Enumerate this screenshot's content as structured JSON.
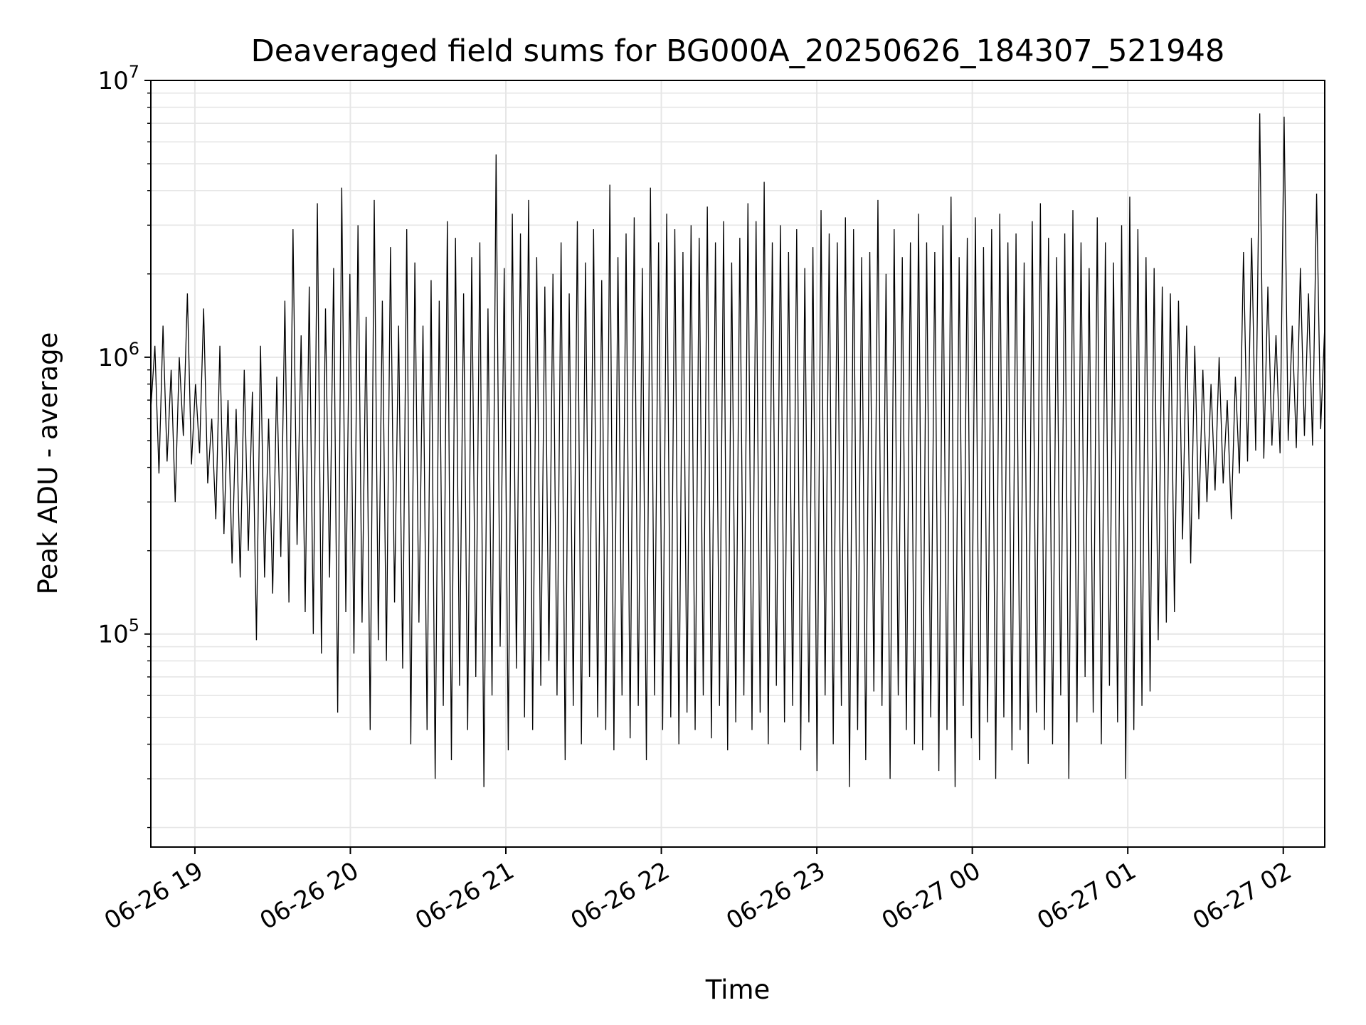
{
  "chart_data": {
    "type": "line",
    "title": "Deaveraged field sums for BG000A_20250626_184307_521948",
    "xlabel": "Time",
    "ylabel": "Peak ADU - average",
    "y_scale": "log",
    "ylim": [
      17000,
      10000000
    ],
    "xlim": [
      "2025-06-26 18:43",
      "2025-06-27 02:16"
    ],
    "grid": true,
    "line_color": "#000000",
    "x_ticks": [
      {
        "time": "2025-06-26 19:00",
        "label": "06-26 19"
      },
      {
        "time": "2025-06-26 20:00",
        "label": "06-26 20"
      },
      {
        "time": "2025-06-26 21:00",
        "label": "06-26 21"
      },
      {
        "time": "2025-06-26 22:00",
        "label": "06-26 22"
      },
      {
        "time": "2025-06-26 23:00",
        "label": "06-26 23"
      },
      {
        "time": "2025-06-27 00:00",
        "label": "06-27 00"
      },
      {
        "time": "2025-06-27 01:00",
        "label": "06-27 01"
      },
      {
        "time": "2025-06-27 02:00",
        "label": "06-27 02"
      }
    ],
    "y_ticks": [
      {
        "value": 100000,
        "base": "10",
        "exp": "5"
      },
      {
        "value": 1000000,
        "base": "10",
        "exp": "6"
      },
      {
        "value": 10000000,
        "base": "10",
        "exp": "7"
      }
    ],
    "series": [
      {
        "x_start": "2025-06-26 18:43",
        "x_end": "2025-06-27 02:16",
        "values": [
          650000,
          1100000,
          380000,
          1300000,
          420000,
          900000,
          300000,
          1000000,
          520000,
          1700000,
          410000,
          800000,
          450000,
          1500000,
          350000,
          600000,
          260000,
          1100000,
          230000,
          700000,
          180000,
          650000,
          160000,
          900000,
          200000,
          750000,
          95000,
          1100000,
          160000,
          600000,
          140000,
          850000,
          190000,
          1600000,
          130000,
          2900000,
          210000,
          1200000,
          120000,
          1800000,
          100000,
          3600000,
          85000,
          1500000,
          160000,
          2100000,
          52000,
          4100000,
          120000,
          2000000,
          85000,
          3000000,
          110000,
          1400000,
          45000,
          3700000,
          95000,
          1600000,
          80000,
          2500000,
          130000,
          1300000,
          75000,
          2900000,
          40000,
          2200000,
          110000,
          1300000,
          45000,
          1900000,
          30000,
          1600000,
          55000,
          3100000,
          35000,
          2700000,
          65000,
          1700000,
          45000,
          2300000,
          70000,
          2600000,
          28000,
          1500000,
          60000,
          5400000,
          90000,
          2100000,
          38000,
          3300000,
          75000,
          2800000,
          50000,
          3700000,
          45000,
          2300000,
          65000,
          1800000,
          80000,
          2000000,
          60000,
          2600000,
          35000,
          1700000,
          55000,
          3100000,
          40000,
          2200000,
          70000,
          2900000,
          50000,
          1900000,
          45000,
          4200000,
          38000,
          2300000,
          60000,
          2800000,
          42000,
          3200000,
          55000,
          2100000,
          35000,
          4100000,
          60000,
          2600000,
          45000,
          3300000,
          50000,
          2900000,
          40000,
          2400000,
          52000,
          3000000,
          45000,
          2700000,
          60000,
          3500000,
          42000,
          2600000,
          55000,
          3100000,
          38000,
          2200000,
          48000,
          2700000,
          60000,
          3600000,
          45000,
          3100000,
          52000,
          4300000,
          40000,
          2600000,
          65000,
          3000000,
          48000,
          2400000,
          55000,
          2900000,
          38000,
          2100000,
          48000,
          2500000,
          32000,
          3400000,
          60000,
          2800000,
          40000,
          2600000,
          55000,
          3200000,
          28000,
          2900000,
          45000,
          2300000,
          35000,
          2400000,
          62000,
          3700000,
          55000,
          2000000,
          30000,
          2900000,
          60000,
          2300000,
          45000,
          2600000,
          40000,
          3300000,
          38000,
          2600000,
          50000,
          2400000,
          32000,
          3000000,
          45000,
          3800000,
          28000,
          2300000,
          55000,
          2700000,
          42000,
          3200000,
          35000,
          2500000,
          48000,
          2900000,
          30000,
          3300000,
          50000,
          2600000,
          38000,
          2800000,
          45000,
          2200000,
          34000,
          3100000,
          52000,
          3600000,
          45000,
          2700000,
          40000,
          2300000,
          60000,
          2800000,
          30000,
          3400000,
          48000,
          2600000,
          70000,
          2100000,
          52000,
          3200000,
          40000,
          2600000,
          65000,
          2200000,
          48000,
          3000000,
          30000,
          3800000,
          45000,
          2900000,
          55000,
          2300000,
          62000,
          2100000,
          95000,
          1800000,
          110000,
          1700000,
          120000,
          1600000,
          220000,
          1300000,
          180000,
          1100000,
          260000,
          900000,
          300000,
          800000,
          330000,
          1000000,
          350000,
          700000,
          260000,
          850000,
          380000,
          2400000,
          420000,
          2700000,
          460000,
          7600000,
          430000,
          1800000,
          480000,
          1200000,
          450000,
          7400000,
          500000,
          1300000,
          470000,
          2100000,
          520000,
          1700000,
          480000,
          3900000,
          550000,
          1300000
        ]
      }
    ]
  }
}
